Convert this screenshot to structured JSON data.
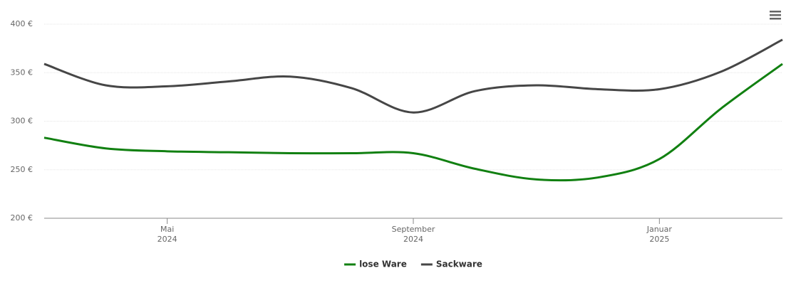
{
  "chart_data": {
    "type": "line",
    "x": [
      "2024-03",
      "2024-04",
      "2024-05",
      "2024-06",
      "2024-07",
      "2024-08",
      "2024-09",
      "2024-10",
      "2024-11",
      "2024-12",
      "2025-01",
      "2025-02",
      "2025-03"
    ],
    "xlim": [
      "2024-03",
      "2025-03"
    ],
    "xticks": [
      {
        "value": "2024-05",
        "label": "Mai\n2024"
      },
      {
        "value": "2024-09",
        "label": "September\n2024"
      },
      {
        "value": "2025-01",
        "label": "Januar\n2025"
      }
    ],
    "ylim": [
      200,
      400
    ],
    "yticks": [
      {
        "value": 200,
        "label": "200 €"
      },
      {
        "value": 250,
        "label": "250 €"
      },
      {
        "value": 300,
        "label": "300 €"
      },
      {
        "value": 350,
        "label": "350 €"
      },
      {
        "value": 400,
        "label": "400 €"
      }
    ],
    "grid": true,
    "legend": "bottom",
    "series": [
      {
        "name": "lose Ware",
        "color": "#118011",
        "values": [
          283,
          272,
          269,
          268,
          267,
          267,
          267,
          251,
          240,
          242,
          261,
          313,
          359
        ]
      },
      {
        "name": "Sackware",
        "color": "#464646",
        "values": [
          359,
          337,
          336,
          341,
          346,
          334,
          309,
          331,
          337,
          333,
          333,
          351,
          384
        ]
      }
    ]
  }
}
